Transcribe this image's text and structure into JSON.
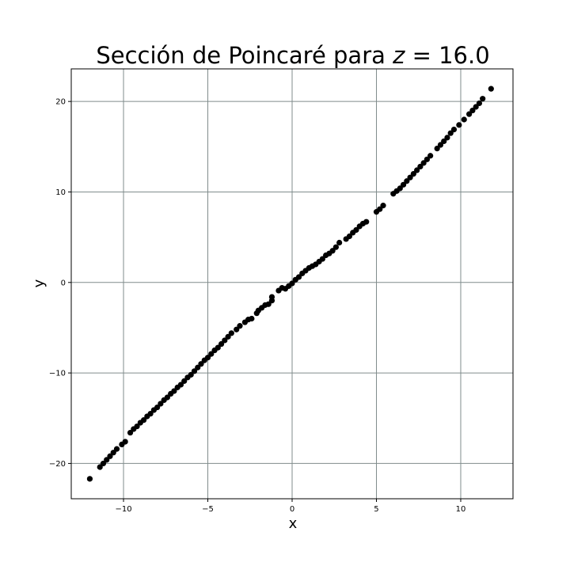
{
  "chart_data": {
    "type": "scatter",
    "title_prefix": "Sección de Poincaré para ",
    "title_var": "z",
    "title_eq": " = 16.0",
    "xlabel": "x",
    "ylabel": "y",
    "xlim": [
      -13.1,
      13.1
    ],
    "ylim": [
      -23.9,
      23.6
    ],
    "xticks": [
      -10,
      -5,
      0,
      5,
      10
    ],
    "xtick_labels": [
      "−10",
      "−5",
      "0",
      "5",
      "10"
    ],
    "yticks": [
      -20,
      -10,
      0,
      10,
      20
    ],
    "ytick_labels": [
      "−20",
      "−10",
      "0",
      "10",
      "20"
    ],
    "grid": true,
    "marker_color": "#000000",
    "grid_color": "#808c8c",
    "points": [
      [
        -12.0,
        -21.7
      ],
      [
        -11.4,
        -20.4
      ],
      [
        -11.2,
        -20.0
      ],
      [
        -11.0,
        -19.6
      ],
      [
        -10.8,
        -19.2
      ],
      [
        -10.6,
        -18.8
      ],
      [
        -10.4,
        -18.4
      ],
      [
        -10.1,
        -17.9
      ],
      [
        -9.9,
        -17.6
      ],
      [
        -9.6,
        -16.6
      ],
      [
        -9.4,
        -16.2
      ],
      [
        -9.2,
        -15.9
      ],
      [
        -9.0,
        -15.5
      ],
      [
        -8.8,
        -15.2
      ],
      [
        -8.6,
        -14.8
      ],
      [
        -8.4,
        -14.5
      ],
      [
        -8.2,
        -14.1
      ],
      [
        -8.0,
        -13.8
      ],
      [
        -7.8,
        -13.4
      ],
      [
        -7.6,
        -13.0
      ],
      [
        -7.4,
        -12.7
      ],
      [
        -7.2,
        -12.3
      ],
      [
        -7.0,
        -12.0
      ],
      [
        -6.8,
        -11.6
      ],
      [
        -6.6,
        -11.3
      ],
      [
        -6.4,
        -10.9
      ],
      [
        -6.2,
        -10.5
      ],
      [
        -6.0,
        -10.2
      ],
      [
        -5.8,
        -9.8
      ],
      [
        -5.6,
        -9.4
      ],
      [
        -5.4,
        -9.0
      ],
      [
        -5.2,
        -8.6
      ],
      [
        -5.0,
        -8.3
      ],
      [
        -4.8,
        -7.9
      ],
      [
        -4.6,
        -7.5
      ],
      [
        -4.4,
        -7.2
      ],
      [
        -4.2,
        -6.8
      ],
      [
        -4.0,
        -6.4
      ],
      [
        -3.8,
        -6.0
      ],
      [
        -3.6,
        -5.6
      ],
      [
        -3.3,
        -5.2
      ],
      [
        -3.1,
        -4.8
      ],
      [
        -2.8,
        -4.4
      ],
      [
        -2.6,
        -4.1
      ],
      [
        -2.4,
        -4.0
      ],
      [
        -2.1,
        -3.4
      ],
      [
        -2.0,
        -3.1
      ],
      [
        -1.8,
        -2.8
      ],
      [
        -1.6,
        -2.5
      ],
      [
        -1.4,
        -2.4
      ],
      [
        -1.2,
        -1.6
      ],
      [
        -1.2,
        -2.0
      ],
      [
        -0.8,
        -0.9
      ],
      [
        -0.6,
        -0.6
      ],
      [
        -0.4,
        -0.7
      ],
      [
        -0.2,
        -0.4
      ],
      [
        0.0,
        -0.1
      ],
      [
        0.2,
        0.3
      ],
      [
        0.4,
        0.6
      ],
      [
        0.6,
        1.0
      ],
      [
        0.8,
        1.3
      ],
      [
        1.0,
        1.6
      ],
      [
        1.2,
        1.8
      ],
      [
        1.4,
        2.0
      ],
      [
        1.6,
        2.3
      ],
      [
        1.8,
        2.6
      ],
      [
        2.0,
        3.0
      ],
      [
        2.2,
        3.2
      ],
      [
        2.4,
        3.5
      ],
      [
        2.6,
        3.9
      ],
      [
        2.8,
        4.4
      ],
      [
        3.2,
        4.8
      ],
      [
        3.4,
        5.1
      ],
      [
        3.6,
        5.5
      ],
      [
        3.8,
        5.8
      ],
      [
        4.0,
        6.2
      ],
      [
        4.2,
        6.5
      ],
      [
        4.4,
        6.7
      ],
      [
        5.0,
        7.8
      ],
      [
        5.2,
        8.1
      ],
      [
        5.4,
        8.5
      ],
      [
        6.0,
        9.8
      ],
      [
        6.2,
        10.1
      ],
      [
        6.4,
        10.4
      ],
      [
        6.6,
        10.8
      ],
      [
        6.8,
        11.2
      ],
      [
        7.0,
        11.6
      ],
      [
        7.2,
        12.0
      ],
      [
        7.4,
        12.4
      ],
      [
        7.6,
        12.8
      ],
      [
        7.8,
        13.2
      ],
      [
        8.0,
        13.6
      ],
      [
        8.2,
        14.0
      ],
      [
        8.6,
        14.8
      ],
      [
        8.8,
        15.2
      ],
      [
        9.0,
        15.6
      ],
      [
        9.2,
        16.0
      ],
      [
        9.4,
        16.5
      ],
      [
        9.6,
        16.9
      ],
      [
        9.9,
        17.4
      ],
      [
        10.2,
        18.0
      ],
      [
        10.5,
        18.6
      ],
      [
        10.7,
        19.0
      ],
      [
        10.9,
        19.4
      ],
      [
        11.1,
        19.8
      ],
      [
        11.3,
        20.3
      ],
      [
        11.8,
        21.4
      ]
    ]
  }
}
